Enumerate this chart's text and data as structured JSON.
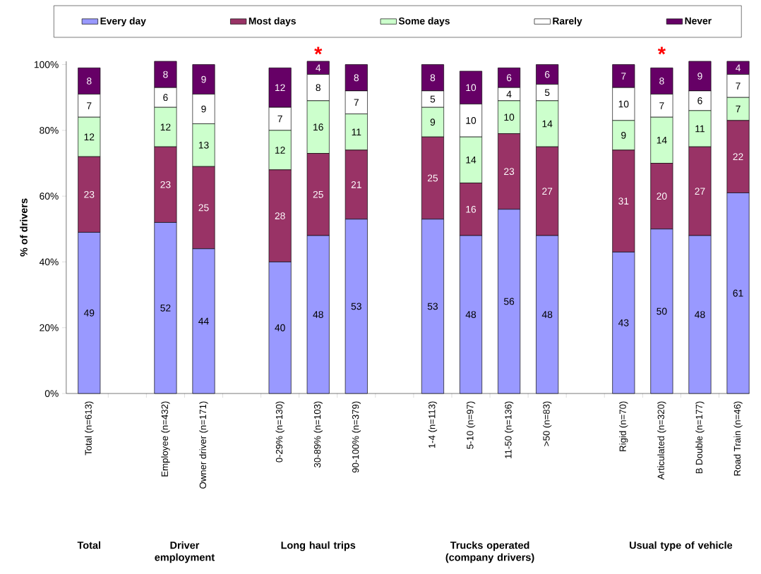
{
  "chart_data": {
    "type": "bar",
    "stacked": true,
    "categories": [
      "Total (n=613)",
      null,
      "Employee (n=432)",
      "Owner driver (n=171)",
      null,
      "0-29% (n=130)",
      "30-89% (n=103)",
      "90-100% (n=379)",
      null,
      "1-4 (n=113)",
      "5-10 (n=97)",
      "11-50 (n=136)",
      ">50 (n=83)",
      null,
      "Rigid (n=70)",
      "Articulated (n=320)",
      "B Double (n=177)",
      "Road Train (n=46)"
    ],
    "series": [
      {
        "name": "Every day",
        "color": "#9999ff",
        "values": [
          49,
          null,
          52,
          44,
          null,
          40,
          48,
          53,
          null,
          53,
          48,
          56,
          48,
          null,
          43,
          50,
          48,
          61
        ]
      },
      {
        "name": "Most days",
        "color": "#993366",
        "values": [
          23,
          null,
          23,
          25,
          null,
          28,
          25,
          21,
          null,
          25,
          16,
          23,
          27,
          null,
          31,
          20,
          27,
          22
        ]
      },
      {
        "name": "Some days",
        "color": "#ccffcc",
        "values": [
          12,
          null,
          12,
          13,
          null,
          12,
          16,
          11,
          null,
          9,
          14,
          10,
          14,
          null,
          9,
          14,
          11,
          7
        ]
      },
      {
        "name": "Rarely",
        "color": "#ffffff",
        "values": [
          7,
          null,
          6,
          9,
          null,
          7,
          8,
          7,
          null,
          5,
          10,
          4,
          5,
          null,
          10,
          7,
          6,
          7
        ]
      },
      {
        "name": "Never",
        "color": "#660066",
        "values": [
          8,
          null,
          8,
          9,
          null,
          12,
          4,
          8,
          null,
          8,
          10,
          6,
          6,
          null,
          7,
          8,
          9,
          4
        ]
      }
    ],
    "ylabel": "% of drivers",
    "ylim": [
      0,
      101
    ],
    "yticks": [
      {
        "value": 0,
        "label": "0%"
      },
      {
        "value": 20,
        "label": "20%"
      },
      {
        "value": 40,
        "label": "40%"
      },
      {
        "value": 60,
        "label": "60%"
      },
      {
        "value": 80,
        "label": "80%"
      },
      {
        "value": 100,
        "label": "100%"
      }
    ],
    "data_labels": true,
    "legend": "top",
    "annotations": [
      "Total",
      "Driver employment",
      "Long haul trips",
      "Trucks operated (company drivers)",
      "Usual type of vehicle",
      {
        "text": "*",
        "x": "30-89% (n=103)",
        "y": 100
      },
      {
        "text": "*",
        "x": "Articulated (n=320)",
        "y": 100
      }
    ]
  }
}
